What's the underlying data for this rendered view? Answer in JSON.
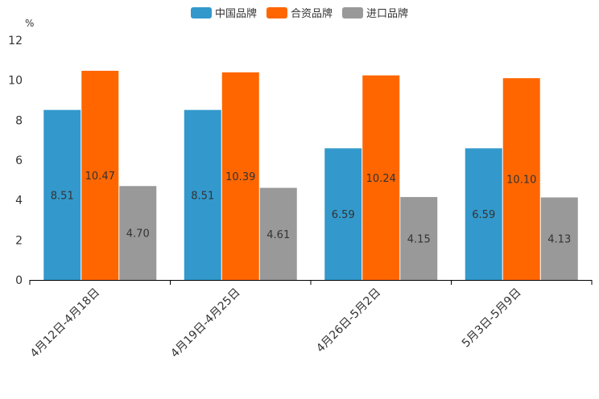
{
  "chart_data": {
    "type": "bar",
    "title": "",
    "unit_label": "%",
    "xlabel": "",
    "ylabel": "%",
    "ylim": [
      0,
      12
    ],
    "yticks": [
      0,
      2,
      4,
      6,
      8,
      10,
      12
    ],
    "categories": [
      "4月12日-4月18日",
      "4月19日-4月25日",
      "4月26日-5月2日",
      "5月3日-5月9日"
    ],
    "series": [
      {
        "name": "中国品牌",
        "color": "#3399cc",
        "values": [
          8.51,
          8.51,
          6.59,
          6.59
        ],
        "labels": [
          "8.51",
          "8.51",
          "6.59",
          "6.59"
        ]
      },
      {
        "name": "合资品牌",
        "color": "#ff6600",
        "values": [
          10.47,
          10.39,
          10.24,
          10.1
        ],
        "labels": [
          "10.47",
          "10.39",
          "10.24",
          "10.10"
        ]
      },
      {
        "name": "进口品牌",
        "color": "#999999",
        "values": [
          4.7,
          4.61,
          4.15,
          4.13
        ],
        "labels": [
          "4.70",
          "4.61",
          "4.15",
          "4.13"
        ]
      }
    ],
    "legend_position": "top-center",
    "grid": false
  }
}
